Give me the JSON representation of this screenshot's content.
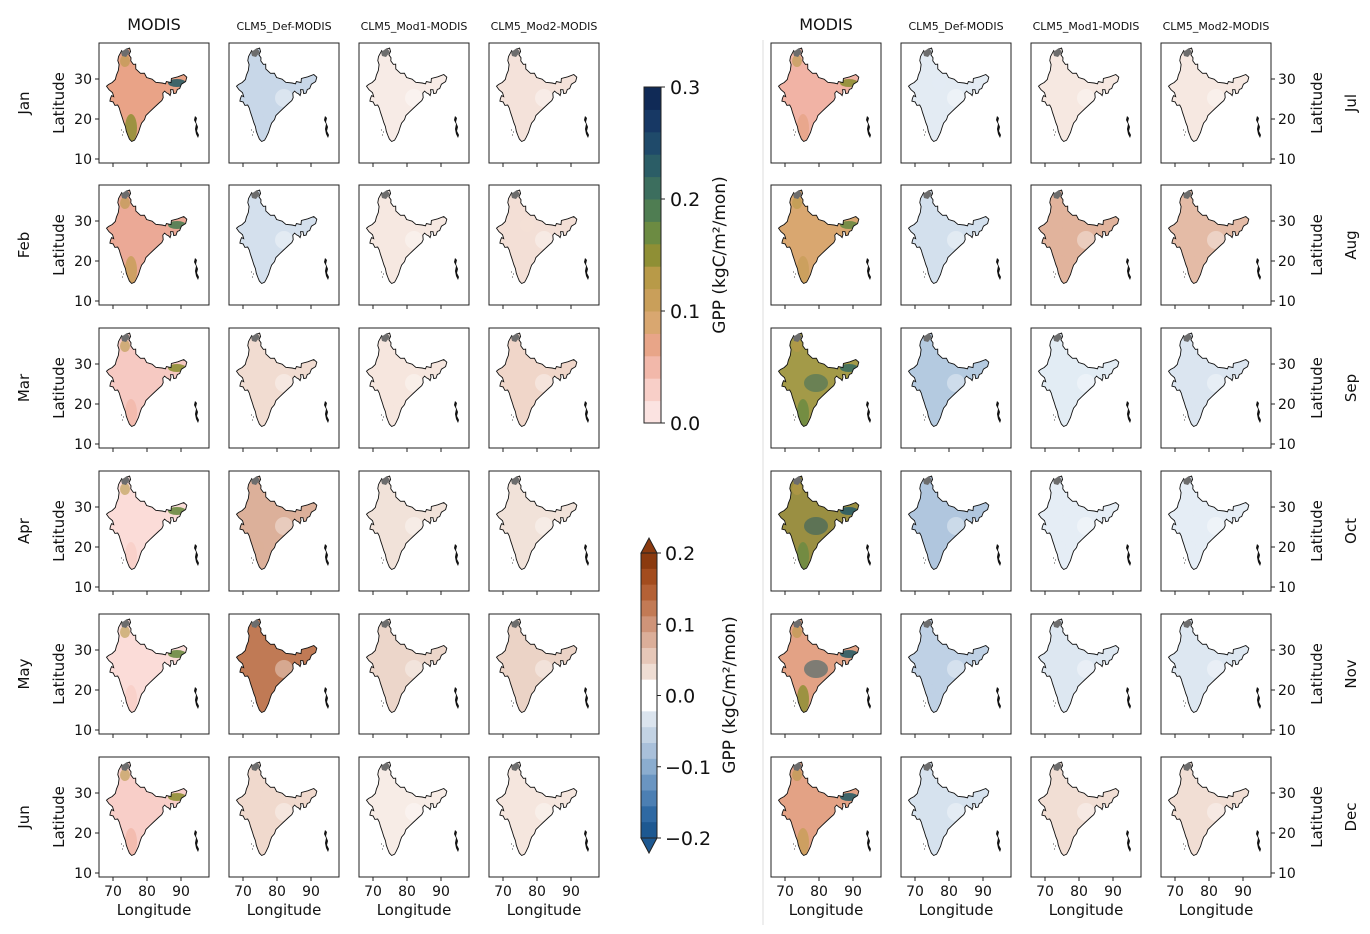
{
  "columns": {
    "left": [
      "MODIS",
      "CLM5_Def-MODIS",
      "CLM5_Mod1-MODIS",
      "CLM5_Mod2-MODIS"
    ],
    "right": [
      "MODIS",
      "CLM5_Def-MODIS",
      "CLM5_Mod1-MODIS",
      "CLM5_Mod2-MODIS"
    ]
  },
  "months": {
    "left": [
      "Jan",
      "Feb",
      "Mar",
      "Apr",
      "May",
      "Jun"
    ],
    "right": [
      "Jul",
      "Aug",
      "Sep",
      "Oct",
      "Nov",
      "Dec"
    ]
  },
  "axes": {
    "ylabel": "Latitude",
    "xlabel": "Longitude",
    "yticks": [
      "30",
      "20",
      "10"
    ],
    "xticks": [
      "70",
      "80",
      "90"
    ]
  },
  "colorbar_gpp": {
    "label": "GPP (kgC/m²/mon)",
    "ticks": [
      "0.3",
      "0.2",
      "0.1",
      "0.0"
    ],
    "colors": [
      "#fbe3e1",
      "#f8cfc8",
      "#f2b8aa",
      "#e8a588",
      "#d9a770",
      "#c99f5a",
      "#b89a48",
      "#8f8f35",
      "#6c8b42",
      "#4f7d52",
      "#3c6e5e",
      "#2b5d66",
      "#1f4a6a",
      "#173864",
      "#102a56"
    ]
  },
  "colorbar_diff": {
    "label": "GPP (kgC/m²/mon)",
    "ticks": [
      "0.2",
      "0.1",
      "0.0",
      "−0.1",
      "−0.2"
    ],
    "colors": [
      "#8b3a0f",
      "#a34c1e",
      "#b46136",
      "#c27a55",
      "#cf9479",
      "#dbae99",
      "#e6c7b8",
      "#efddd3",
      "#ffffff",
      "#ffffff",
      "#dbe4ee",
      "#c3d3e4",
      "#a9c0da",
      "#8badcf",
      "#6a95c1",
      "#4c7fb3",
      "#2f69a3",
      "#1d5891"
    ]
  }
}
